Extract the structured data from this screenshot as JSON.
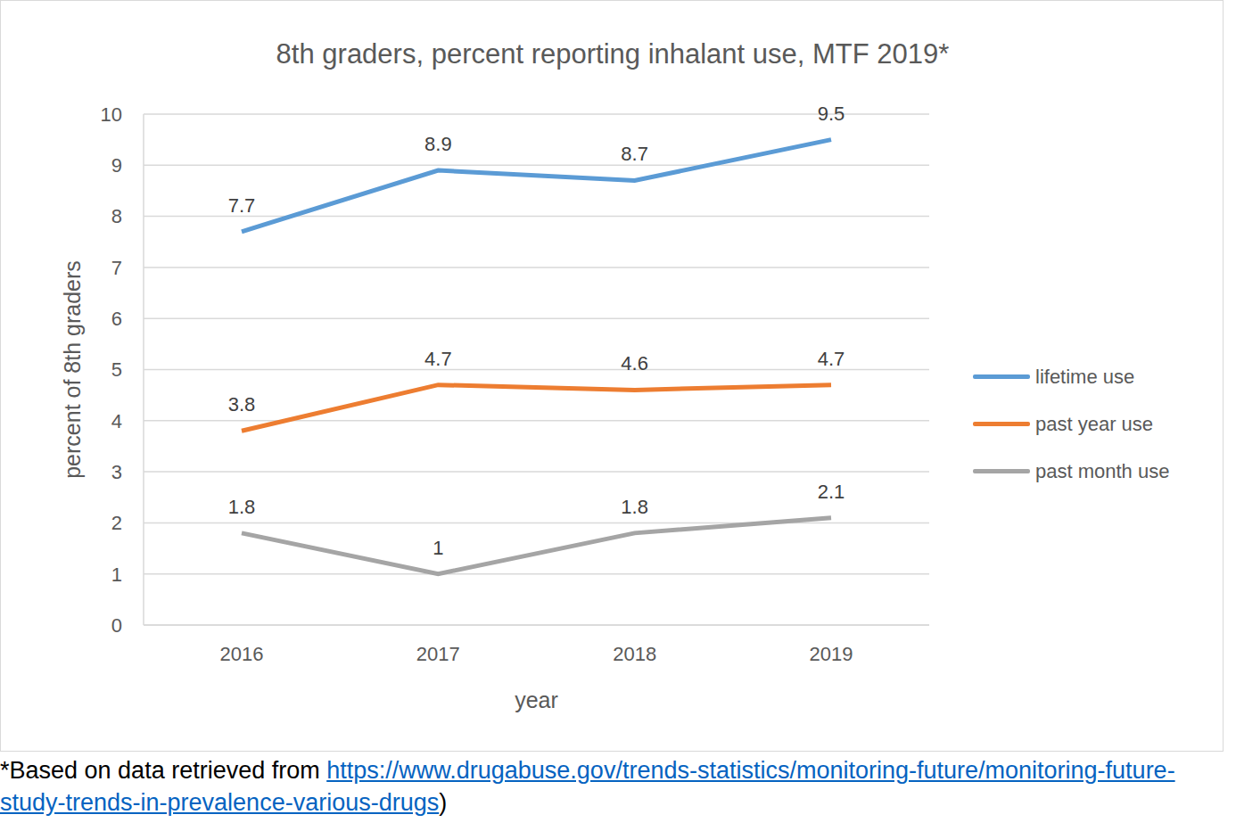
{
  "chart_data": {
    "type": "line",
    "title": "8th graders, percent reporting inhalant use, MTF 2019*",
    "x_label": "year",
    "y_label": "percent of 8th graders",
    "categories": [
      "2016",
      "2017",
      "2018",
      "2019"
    ],
    "series": [
      {
        "name": "lifetime use",
        "color": "#5b9bd5",
        "values": [
          7.7,
          8.9,
          8.7,
          9.5
        ]
      },
      {
        "name": "past year use",
        "color": "#ed7d31",
        "values": [
          3.8,
          4.7,
          4.6,
          4.7
        ]
      },
      {
        "name": "past month use",
        "color": "#a5a5a5",
        "values": [
          1.8,
          1,
          1.8,
          2.1
        ]
      }
    ],
    "ylim": [
      0,
      10
    ],
    "yticks": [
      0,
      1,
      2,
      3,
      4,
      5,
      6,
      7,
      8,
      9,
      10
    ],
    "grid": true,
    "legend": "right",
    "data_labels": true,
    "footnote": {
      "text": "*Based on data retrieved from ",
      "link": "https://www.drugabuse.gov/trends-statistics/monitoring-future/monitoring-future-study-trends-in-prevalence-various-drugs",
      "suffix": ")"
    }
  }
}
